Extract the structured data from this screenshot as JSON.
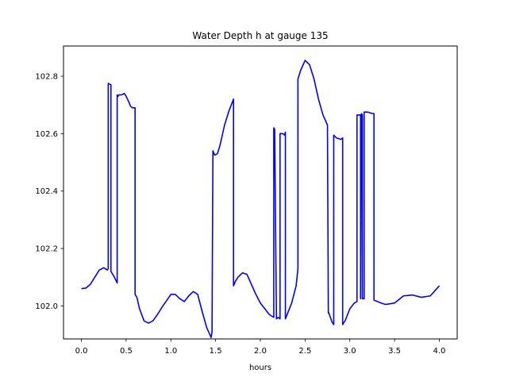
{
  "chart_data": {
    "type": "line",
    "title": "Water Depth h at gauge 135",
    "xlabel": "hours",
    "ylabel": "",
    "xlim": [
      -0.2,
      4.2
    ],
    "ylim": [
      101.885,
      102.905
    ],
    "xticks": [
      0.0,
      0.5,
      1.0,
      1.5,
      2.0,
      2.5,
      3.0,
      3.5,
      4.0
    ],
    "xtick_labels": [
      "0.0",
      "0.5",
      "1.0",
      "1.5",
      "2.0",
      "2.5",
      "3.0",
      "3.5",
      "4.0"
    ],
    "yticks": [
      102.0,
      102.2,
      102.4,
      102.6,
      102.8
    ],
    "ytick_labels": [
      "102.0",
      "102.2",
      "102.4",
      "102.6",
      "102.8"
    ],
    "grid": false,
    "series": [
      {
        "color": "#0000ff",
        "x": [
          0.0,
          0.05,
          0.1,
          0.15,
          0.2,
          0.25,
          0.29,
          0.3,
          0.3,
          0.33,
          0.33,
          0.36,
          0.4,
          0.4,
          0.41,
          0.42,
          0.45,
          0.48,
          0.5,
          0.53,
          0.55,
          0.57,
          0.6,
          0.6,
          0.62,
          0.65,
          0.7,
          0.75,
          0.8,
          0.85,
          0.9,
          1.0,
          1.05,
          1.1,
          1.15,
          1.2,
          1.25,
          1.3,
          1.35,
          1.4,
          1.45,
          1.46,
          1.47,
          1.49,
          1.52,
          1.55,
          1.6,
          1.65,
          1.7,
          1.7,
          1.72,
          1.75,
          1.8,
          1.85,
          1.9,
          1.95,
          2.0,
          2.05,
          2.1,
          2.15,
          2.15,
          2.16,
          2.18,
          2.2,
          2.22,
          2.22,
          2.25,
          2.27,
          2.28,
          2.28,
          2.35,
          2.4,
          2.42,
          2.42,
          2.45,
          2.5,
          2.55,
          2.6,
          2.65,
          2.7,
          2.75,
          2.76,
          2.76,
          2.8,
          2.82,
          2.82,
          2.85,
          2.9,
          2.92,
          2.92,
          2.95,
          3.0,
          3.05,
          3.08,
          3.08,
          3.12,
          3.12,
          3.13,
          3.14,
          3.14,
          3.16,
          3.16,
          3.2,
          3.25,
          3.27,
          3.27,
          3.35,
          3.4,
          3.5,
          3.6,
          3.7,
          3.8,
          3.9,
          4.0
        ],
        "y": [
          102.06,
          102.062,
          102.075,
          102.1,
          102.125,
          102.133,
          102.125,
          102.13,
          102.775,
          102.77,
          102.12,
          102.105,
          102.08,
          102.735,
          102.73,
          102.735,
          102.735,
          102.74,
          102.73,
          102.71,
          102.695,
          102.69,
          102.69,
          102.04,
          102.03,
          101.99,
          101.948,
          101.94,
          101.948,
          101.97,
          101.995,
          102.04,
          102.04,
          102.025,
          102.015,
          102.035,
          102.05,
          102.04,
          101.98,
          101.925,
          101.89,
          101.91,
          102.54,
          102.525,
          102.53,
          102.56,
          102.63,
          102.68,
          102.72,
          102.07,
          102.085,
          102.1,
          102.115,
          102.11,
          102.075,
          102.04,
          102.01,
          101.99,
          101.97,
          101.96,
          102.62,
          102.615,
          101.955,
          101.96,
          101.955,
          102.6,
          102.6,
          102.595,
          102.605,
          101.955,
          102.01,
          102.07,
          102.13,
          102.79,
          102.82,
          102.855,
          102.84,
          102.79,
          102.72,
          102.665,
          102.63,
          101.975,
          101.98,
          101.945,
          101.935,
          102.595,
          102.585,
          102.58,
          102.585,
          101.935,
          101.95,
          101.99,
          102.01,
          102.015,
          102.665,
          102.665,
          102.025,
          102.67,
          102.665,
          102.025,
          102.025,
          102.675,
          102.675,
          102.67,
          102.67,
          102.02,
          102.01,
          102.005,
          102.01,
          102.035,
          102.038,
          102.03,
          102.035,
          102.07
        ]
      }
    ]
  }
}
